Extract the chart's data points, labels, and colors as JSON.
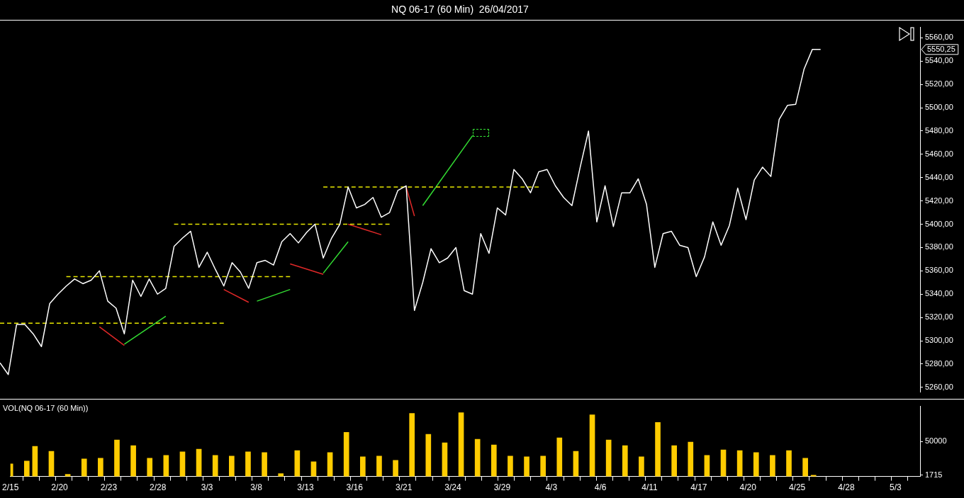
{
  "chart_data": [
    {
      "type": "line",
      "title": "NQ 06-17 (60 Min)  26/04/2017",
      "categories": [
        null,
        null,
        null,
        null,
        null,
        null,
        null,
        null,
        null,
        null,
        null,
        null,
        null,
        null,
        null,
        null,
        null,
        null,
        null,
        null,
        null,
        null,
        null,
        null,
        null,
        null,
        null,
        null,
        null,
        null,
        null,
        null,
        null,
        null,
        null,
        null,
        null,
        null,
        null,
        null,
        null,
        null,
        null,
        null,
        null,
        null,
        null,
        null,
        null,
        null,
        null,
        null,
        null,
        null,
        null,
        null,
        null,
        null,
        null,
        null,
        null,
        null,
        null,
        null,
        null,
        null,
        null,
        null,
        null,
        null,
        null,
        null,
        null,
        null,
        null,
        null,
        null,
        null,
        null,
        null,
        null,
        null,
        null,
        null,
        null,
        null,
        null,
        null,
        null,
        null,
        null,
        null,
        null,
        null,
        null,
        null,
        null,
        null,
        null,
        null,
        null,
        null,
        null,
        null,
        null,
        null,
        null,
        null,
        null,
        null,
        null,
        null
      ],
      "ylim": [
        5256,
        5569
      ],
      "yticks": [
        {
          "value": 5260,
          "label": "5260,00"
        },
        {
          "value": 5280,
          "label": "5280,00"
        },
        {
          "value": 5300,
          "label": "5300,00"
        },
        {
          "value": 5320,
          "label": "5320,00"
        },
        {
          "value": 5340,
          "label": "5340,00"
        },
        {
          "value": 5360,
          "label": "5360,00"
        },
        {
          "value": 5380,
          "label": "5380,00"
        },
        {
          "value": 5400,
          "label": "5400,00"
        },
        {
          "value": 5420,
          "label": "5420,00"
        },
        {
          "value": 5440,
          "label": "5440,00"
        },
        {
          "value": 5460,
          "label": "5460,00"
        },
        {
          "value": 5480,
          "label": "5480,00"
        },
        {
          "value": 5500,
          "label": "5500,00"
        },
        {
          "value": 5520,
          "label": "5520,00"
        },
        {
          "value": 5540,
          "label": "5540,00"
        },
        {
          "value": 5560,
          "label": "5560,00"
        }
      ],
      "tick_labels": "y",
      "annotations": [
        "5550,25"
      ],
      "series": [
        {
          "color": "#ffffff",
          "values": [
            5281,
            5271,
            5314,
            5314,
            5306,
            5295,
            5332,
            5340,
            5347,
            5353,
            5349,
            5352,
            5360,
            5334,
            5328,
            5306,
            5352,
            5338,
            5353,
            5340,
            5345,
            5381,
            5388,
            5394,
            5363,
            5376,
            5361,
            5347,
            5367,
            5359,
            5345,
            5367,
            5369,
            5365,
            5385,
            5392,
            5384,
            5393,
            5400,
            5371,
            5388,
            5400,
            5432,
            5414,
            5417,
            5423,
            5406,
            5410,
            5429,
            5433,
            5326,
            5350,
            5379,
            5367,
            5371,
            5380,
            5343,
            5340,
            5392,
            5375,
            5414,
            5408,
            5447,
            5439,
            5427,
            5445,
            5447,
            5433,
            5423,
            5416,
            5449,
            5480,
            5402,
            5433,
            5398,
            5427,
            5427,
            5439,
            5417,
            5363,
            5392,
            5394,
            5382,
            5380,
            5355,
            5372,
            5402,
            5382,
            5399,
            5431,
            5404,
            5438,
            5449,
            5441,
            5490,
            5502,
            5503,
            5533,
            5550,
            5550,
            null,
            null,
            null,
            null,
            null,
            null,
            null,
            null,
            null,
            null,
            null,
            null
          ]
        },
        {
          "color": "#e8e800",
          "line_style": "dashed",
          "values": [
            5315,
            null,
            null,
            null,
            null,
            null,
            null,
            null,
            null,
            null,
            null,
            null,
            null,
            null,
            null,
            null,
            null,
            null,
            null,
            null,
            null,
            null,
            null,
            null,
            null,
            null,
            null,
            5315,
            null,
            null,
            null,
            null,
            null,
            null,
            null,
            null,
            null,
            null,
            null,
            null,
            null,
            null,
            null,
            null,
            null,
            null,
            null,
            null,
            null,
            null,
            null,
            null,
            null,
            null,
            null,
            null,
            null,
            null,
            null,
            null,
            null,
            null,
            null,
            null,
            null,
            null,
            null,
            null,
            null,
            null,
            null,
            null,
            null,
            null,
            null,
            null,
            null,
            null,
            null,
            null,
            null,
            null,
            null,
            null,
            null,
            null,
            null,
            null,
            null,
            null,
            null,
            null,
            null,
            null,
            null,
            null,
            null,
            null,
            null,
            null,
            null,
            null,
            null,
            null,
            null,
            null,
            null,
            null,
            null,
            null,
            null,
            null
          ]
        },
        {
          "color": "#e8e800",
          "line_style": "dashed",
          "values": [
            null,
            null,
            null,
            null,
            null,
            null,
            null,
            null,
            5355,
            null,
            null,
            null,
            null,
            null,
            null,
            null,
            null,
            null,
            null,
            null,
            null,
            null,
            null,
            null,
            null,
            null,
            null,
            null,
            null,
            null,
            null,
            null,
            null,
            null,
            null,
            5355,
            null,
            null,
            null,
            null,
            null,
            null,
            null,
            null,
            null,
            null,
            null,
            null,
            null,
            null,
            null,
            null,
            null,
            null,
            null,
            null,
            null,
            null,
            null,
            null,
            null,
            null,
            null,
            null,
            null,
            null,
            null,
            null,
            null,
            null,
            null,
            null,
            null,
            null,
            null,
            null,
            null,
            null,
            null,
            null,
            null,
            null,
            null,
            null,
            null,
            null,
            null,
            null,
            null,
            null,
            null,
            null,
            null,
            null,
            null,
            null,
            null,
            null,
            null,
            null,
            null,
            null,
            null,
            null,
            null,
            null,
            null,
            null,
            null,
            null,
            null,
            null
          ]
        },
        {
          "color": "#e8e800",
          "line_style": "dashed",
          "values": [
            null,
            null,
            null,
            null,
            null,
            null,
            null,
            null,
            null,
            null,
            null,
            null,
            null,
            null,
            null,
            null,
            null,
            null,
            null,
            null,
            null,
            5400,
            null,
            null,
            null,
            null,
            null,
            null,
            null,
            null,
            null,
            null,
            null,
            null,
            null,
            null,
            null,
            null,
            null,
            null,
            null,
            null,
            null,
            null,
            null,
            null,
            null,
            5400,
            null,
            null,
            null,
            null,
            null,
            null,
            null,
            null,
            null,
            null,
            null,
            null,
            null,
            null,
            null,
            null,
            null,
            null,
            null,
            null,
            null,
            null,
            null,
            null,
            null,
            null,
            null,
            null,
            null,
            null,
            null,
            null,
            null,
            null,
            null,
            null,
            null,
            null,
            null,
            null,
            null,
            null,
            null,
            null,
            null,
            null,
            null,
            null,
            null,
            null,
            null,
            null,
            null,
            null,
            null,
            null,
            null,
            null,
            null,
            null,
            null,
            null,
            null,
            null
          ]
        },
        {
          "color": "#e8e800",
          "line_style": "dashed",
          "values": [
            null,
            null,
            null,
            null,
            null,
            null,
            null,
            null,
            null,
            null,
            null,
            null,
            null,
            null,
            null,
            null,
            null,
            null,
            null,
            null,
            null,
            null,
            null,
            null,
            null,
            null,
            null,
            null,
            null,
            null,
            null,
            null,
            null,
            null,
            null,
            null,
            null,
            null,
            null,
            5432,
            null,
            null,
            null,
            null,
            null,
            null,
            null,
            null,
            null,
            null,
            null,
            null,
            null,
            null,
            null,
            null,
            null,
            null,
            null,
            null,
            null,
            null,
            null,
            null,
            null,
            5432,
            null,
            null,
            null,
            null,
            null,
            null,
            null,
            null,
            null,
            null,
            null,
            null,
            null,
            null,
            null,
            null,
            null,
            null,
            null,
            null,
            null,
            null,
            null,
            null,
            null,
            null,
            null,
            null,
            null,
            null,
            null,
            null,
            null,
            null,
            null,
            null,
            null,
            null,
            null,
            null,
            null,
            null,
            null,
            null,
            null,
            null
          ]
        },
        {
          "color": "#e02828",
          "values": [
            null,
            null,
            null,
            null,
            null,
            null,
            null,
            null,
            null,
            null,
            null,
            null,
            5312,
            null,
            null,
            5296,
            null,
            null,
            null,
            null,
            null,
            null,
            null,
            null,
            null,
            null,
            null,
            null,
            null,
            null,
            null,
            null,
            null,
            null,
            null,
            null,
            null,
            null,
            null,
            null,
            null,
            null,
            null,
            null,
            null,
            null,
            null,
            null,
            null,
            null,
            null,
            null,
            null,
            null,
            null,
            null,
            null,
            null,
            null,
            null,
            null,
            null,
            null,
            null,
            null,
            null,
            null,
            null,
            null,
            null,
            null,
            null,
            null,
            null,
            null,
            null,
            null,
            null,
            null,
            null,
            null,
            null,
            null,
            null,
            null,
            null,
            null,
            null,
            null,
            null,
            null,
            null,
            null,
            null,
            null,
            null,
            null,
            null,
            null,
            null,
            null,
            null,
            null,
            null,
            null,
            null,
            null,
            null,
            null,
            null,
            null,
            null
          ]
        },
        {
          "color": "#e02828",
          "values": [
            null,
            null,
            null,
            null,
            null,
            null,
            null,
            null,
            null,
            null,
            null,
            null,
            null,
            null,
            null,
            null,
            null,
            null,
            null,
            null,
            null,
            null,
            null,
            null,
            null,
            null,
            null,
            5344,
            null,
            null,
            5333,
            null,
            null,
            null,
            null,
            null,
            null,
            null,
            null,
            null,
            null,
            null,
            null,
            null,
            null,
            null,
            null,
            null,
            null,
            null,
            null,
            null,
            null,
            null,
            null,
            null,
            null,
            null,
            null,
            null,
            null,
            null,
            null,
            null,
            null,
            null,
            null,
            null,
            null,
            null,
            null,
            null,
            null,
            null,
            null,
            null,
            null,
            null,
            null,
            null,
            null,
            null,
            null,
            null,
            null,
            null,
            null,
            null,
            null,
            null,
            null,
            null,
            null,
            null,
            null,
            null,
            null,
            null,
            null,
            null,
            null,
            null,
            null,
            null,
            null,
            null,
            null,
            null,
            null,
            null,
            null,
            null
          ]
        },
        {
          "color": "#e02828",
          "values": [
            null,
            null,
            null,
            null,
            null,
            null,
            null,
            null,
            null,
            null,
            null,
            null,
            null,
            null,
            null,
            null,
            null,
            null,
            null,
            null,
            null,
            null,
            null,
            null,
            null,
            null,
            null,
            null,
            null,
            null,
            null,
            null,
            null,
            null,
            null,
            5366,
            null,
            null,
            null,
            5357,
            null,
            null,
            null,
            null,
            null,
            null,
            null,
            null,
            null,
            null,
            null,
            null,
            null,
            null,
            null,
            null,
            null,
            null,
            null,
            null,
            null,
            null,
            null,
            null,
            null,
            null,
            null,
            null,
            null,
            null,
            null,
            null,
            null,
            null,
            null,
            null,
            null,
            null,
            null,
            null,
            null,
            null,
            null,
            null,
            null,
            null,
            null,
            null,
            null,
            null,
            null,
            null,
            null,
            null,
            null,
            null,
            null,
            null,
            null,
            null,
            null,
            null,
            null,
            null,
            null,
            null,
            null,
            null,
            null,
            null,
            null,
            null
          ]
        },
        {
          "color": "#e02828",
          "values": [
            null,
            null,
            null,
            null,
            null,
            null,
            null,
            null,
            null,
            null,
            null,
            null,
            null,
            null,
            null,
            null,
            null,
            null,
            null,
            null,
            null,
            null,
            null,
            null,
            null,
            null,
            null,
            null,
            null,
            null,
            null,
            null,
            null,
            null,
            null,
            null,
            null,
            null,
            null,
            null,
            null,
            null,
            5400,
            null,
            null,
            null,
            5391,
            null,
            null,
            null,
            null,
            null,
            null,
            null,
            null,
            null,
            null,
            null,
            null,
            null,
            null,
            null,
            null,
            null,
            null,
            null,
            null,
            null,
            null,
            null,
            null,
            null,
            null,
            null,
            null,
            null,
            null,
            null,
            null,
            null,
            null,
            null,
            null,
            null,
            null,
            null,
            null,
            null,
            null,
            null,
            null,
            null,
            null,
            null,
            null,
            null,
            null,
            null,
            null,
            null,
            null,
            null,
            null,
            null,
            null,
            null,
            null,
            null,
            null,
            null,
            null,
            null
          ]
        },
        {
          "color": "#e02828",
          "values": [
            null,
            null,
            null,
            null,
            null,
            null,
            null,
            null,
            null,
            null,
            null,
            null,
            null,
            null,
            null,
            null,
            null,
            null,
            null,
            null,
            null,
            null,
            null,
            null,
            null,
            null,
            null,
            null,
            null,
            null,
            null,
            null,
            null,
            null,
            null,
            null,
            null,
            null,
            null,
            null,
            null,
            null,
            null,
            null,
            null,
            null,
            null,
            null,
            null,
            5432,
            5407,
            null,
            null,
            null,
            null,
            null,
            null,
            null,
            null,
            null,
            null,
            null,
            null,
            null,
            null,
            null,
            null,
            null,
            null,
            null,
            null,
            null,
            null,
            null,
            null,
            null,
            null,
            null,
            null,
            null,
            null,
            null,
            null,
            null,
            null,
            null,
            null,
            null,
            null,
            null,
            null,
            null,
            null,
            null,
            null,
            null,
            null,
            null,
            null,
            null,
            null,
            null,
            null,
            null,
            null,
            null,
            null,
            null,
            null,
            null,
            null,
            null
          ]
        },
        {
          "color": "#33dd33",
          "values": [
            null,
            null,
            null,
            null,
            null,
            null,
            null,
            null,
            null,
            null,
            null,
            null,
            null,
            null,
            null,
            5297,
            null,
            null,
            null,
            null,
            5321,
            null,
            null,
            null,
            null,
            null,
            null,
            null,
            null,
            null,
            null,
            null,
            null,
            null,
            null,
            null,
            null,
            null,
            null,
            null,
            null,
            null,
            null,
            null,
            null,
            null,
            null,
            null,
            null,
            null,
            null,
            null,
            null,
            null,
            null,
            null,
            null,
            null,
            null,
            null,
            null,
            null,
            null,
            null,
            null,
            null,
            null,
            null,
            null,
            null,
            null,
            null,
            null,
            null,
            null,
            null,
            null,
            null,
            null,
            null,
            null,
            null,
            null,
            null,
            null,
            null,
            null,
            null,
            null,
            null,
            null,
            null,
            null,
            null,
            null,
            null,
            null,
            null,
            null,
            null,
            null,
            null,
            null,
            null,
            null,
            null,
            null,
            null,
            null,
            null,
            null,
            null
          ]
        },
        {
          "color": "#33dd33",
          "values": [
            null,
            null,
            null,
            null,
            null,
            null,
            null,
            null,
            null,
            null,
            null,
            null,
            null,
            null,
            null,
            null,
            null,
            null,
            null,
            null,
            null,
            null,
            null,
            null,
            null,
            null,
            null,
            null,
            null,
            null,
            null,
            5334,
            null,
            null,
            null,
            5344,
            null,
            null,
            null,
            null,
            null,
            null,
            null,
            null,
            null,
            null,
            null,
            null,
            null,
            null,
            null,
            null,
            null,
            null,
            null,
            null,
            null,
            null,
            null,
            null,
            null,
            null,
            null,
            null,
            null,
            null,
            null,
            null,
            null,
            null,
            null,
            null,
            null,
            null,
            null,
            null,
            null,
            null,
            null,
            null,
            null,
            null,
            null,
            null,
            null,
            null,
            null,
            null,
            null,
            null,
            null,
            null,
            null,
            null,
            null,
            null,
            null,
            null,
            null,
            null,
            null,
            null,
            null,
            null,
            null,
            null,
            null,
            null,
            null,
            null,
            null,
            null
          ]
        },
        {
          "color": "#33dd33",
          "values": [
            null,
            null,
            null,
            null,
            null,
            null,
            null,
            null,
            null,
            null,
            null,
            null,
            null,
            null,
            null,
            null,
            null,
            null,
            null,
            null,
            null,
            null,
            null,
            null,
            null,
            null,
            null,
            null,
            null,
            null,
            null,
            null,
            null,
            null,
            null,
            null,
            null,
            null,
            null,
            5358,
            null,
            null,
            5385,
            null,
            null,
            null,
            null,
            null,
            null,
            null,
            null,
            null,
            null,
            null,
            null,
            null,
            null,
            null,
            null,
            null,
            null,
            null,
            null,
            null,
            null,
            null,
            null,
            null,
            null,
            null,
            null,
            null,
            null,
            null,
            null,
            null,
            null,
            null,
            null,
            null,
            null,
            null,
            null,
            null,
            null,
            null,
            null,
            null,
            null,
            null,
            null,
            null,
            null,
            null,
            null,
            null,
            null,
            null,
            null,
            null,
            null,
            null,
            null,
            null,
            null,
            null,
            null,
            null,
            null,
            null,
            null,
            null
          ]
        },
        {
          "color": "#33dd33",
          "values": [
            null,
            null,
            null,
            null,
            null,
            null,
            null,
            null,
            null,
            null,
            null,
            null,
            null,
            null,
            null,
            null,
            null,
            null,
            null,
            null,
            null,
            null,
            null,
            null,
            null,
            null,
            null,
            null,
            null,
            null,
            null,
            null,
            null,
            null,
            null,
            null,
            null,
            null,
            null,
            null,
            null,
            null,
            null,
            null,
            null,
            null,
            null,
            null,
            null,
            null,
            null,
            5416,
            null,
            null,
            null,
            null,
            null,
            5476,
            null,
            null,
            null,
            null,
            null,
            null,
            null,
            null,
            null,
            null,
            null,
            null,
            null,
            null,
            null,
            null,
            null,
            null,
            null,
            null,
            null,
            null,
            null,
            null,
            null,
            null,
            null,
            null,
            null,
            null,
            null,
            null,
            null,
            null,
            null,
            null,
            null,
            null,
            null,
            null,
            null,
            null,
            null,
            null,
            null,
            null,
            null,
            null,
            null,
            null,
            null,
            null,
            null,
            null
          ]
        }
      ]
    },
    {
      "type": "bar",
      "title": "VOL(NQ 06-17 (60 Min))",
      "categories": [
        "2/15",
        null,
        null,
        null,
        null,
        null,
        "2/20",
        null,
        null,
        null,
        null,
        null,
        "2/23",
        null,
        null,
        null,
        null,
        null,
        "2/28",
        null,
        null,
        null,
        null,
        null,
        "3/3",
        null,
        null,
        null,
        null,
        null,
        "3/8",
        null,
        null,
        null,
        null,
        null,
        "3/13",
        null,
        null,
        null,
        null,
        null,
        "3/16",
        null,
        null,
        null,
        null,
        null,
        "3/21",
        null,
        null,
        null,
        null,
        null,
        "3/24",
        null,
        null,
        null,
        null,
        null,
        "3/29",
        null,
        null,
        null,
        null,
        null,
        "4/3",
        null,
        null,
        null,
        null,
        null,
        "4/6",
        null,
        null,
        null,
        null,
        null,
        "4/11",
        null,
        null,
        null,
        null,
        null,
        "4/17",
        null,
        null,
        null,
        null,
        null,
        "4/20",
        null,
        null,
        null,
        null,
        null,
        "4/25",
        null,
        null,
        null,
        null,
        null,
        "4/28",
        null,
        null,
        null,
        null,
        null,
        "5/3",
        null,
        null,
        null
      ],
      "ylim": [
        0,
        100000
      ],
      "yticks": [
        1715,
        50000
      ],
      "series": [
        {
          "color": "#ffcc00",
          "values": [
            18000,
            null,
            22000,
            43000,
            null,
            36000,
            null,
            3000,
            null,
            25000,
            null,
            26000,
            null,
            52000,
            null,
            44000,
            null,
            26000,
            null,
            30000,
            null,
            35000,
            null,
            39000,
            null,
            30000,
            null,
            29000,
            null,
            35000,
            null,
            34000,
            null,
            4000,
            null,
            37000,
            null,
            21000,
            null,
            34000,
            null,
            63000,
            null,
            28000,
            null,
            29000,
            null,
            23000,
            null,
            90000,
            null,
            60000,
            null,
            48000,
            null,
            91000,
            null,
            53000,
            null,
            45000,
            null,
            29000,
            null,
            28000,
            null,
            29000,
            null,
            55000,
            null,
            36000,
            null,
            88000,
            null,
            52000,
            null,
            44000,
            null,
            28000,
            null,
            77000,
            null,
            44000,
            null,
            49000,
            null,
            30000,
            null,
            38000,
            null,
            37000,
            null,
            34000,
            null,
            30000,
            null,
            37000,
            null,
            26000,
            1715,
            null,
            null,
            null,
            null,
            null,
            null,
            null,
            null,
            null,
            null,
            null,
            null,
            null
          ]
        }
      ]
    }
  ]
}
